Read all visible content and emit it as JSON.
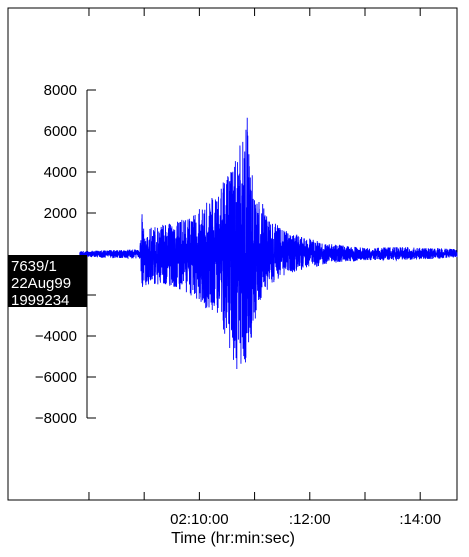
{
  "chart_data": {
    "type": "line",
    "title": "",
    "xlabel": "Time (hr:min:sec)",
    "ylabel": "",
    "x_unit": "seconds after 02:08:00",
    "xlim": [
      -88,
      400
    ],
    "ylim": [
      -12000,
      12000
    ],
    "x_ticks": [
      {
        "t": 0,
        "label": ""
      },
      {
        "t": 60,
        "label": ""
      },
      {
        "t": 120,
        "label": "02:10:00"
      },
      {
        "t": 180,
        "label": ""
      },
      {
        "t": 240,
        "label": ":12:00"
      },
      {
        "t": 300,
        "label": ""
      },
      {
        "t": 360,
        "label": ":14:00"
      }
    ],
    "y_ticks": [
      8000,
      6000,
      4000,
      2000,
      0,
      -2000,
      -4000,
      -6000,
      -8000
    ],
    "y_tick_labels": [
      "8000",
      "6000",
      "4000",
      "2000",
      "",
      "−2000",
      "−4000",
      "−6000",
      "−8000"
    ],
    "grid": false,
    "series": [
      {
        "name": "",
        "color": "#0000ff",
        "envelope": {
          "t": [
            -10,
            0,
            20,
            55,
            58,
            60,
            70,
            90,
            110,
            140,
            162,
            170,
            176,
            178,
            180,
            182,
            186,
            196,
            210,
            230,
            260,
            300,
            340,
            400
          ],
          "max": [
            150,
            150,
            200,
            220,
            2300,
            1000,
            1400,
            1500,
            1800,
            3000,
            5000,
            8000,
            4000,
            4500,
            3500,
            2500,
            2800,
            1800,
            1200,
            900,
            500,
            300,
            350,
            250
          ],
          "min": [
            -150,
            -150,
            -200,
            -220,
            -1700,
            -1600,
            -1500,
            -1600,
            -2200,
            -3000,
            -5800,
            -5500,
            -4500,
            -4000,
            -3500,
            -2800,
            -2400,
            -1600,
            -1100,
            -800,
            -500,
            -300,
            -300,
            -200
          ]
        }
      }
    ]
  },
  "trace_label": {
    "lines": [
      "7639/1",
      "22Aug99",
      "1999234"
    ],
    "bg_color": "#000000",
    "text_color": "#ffffff"
  }
}
